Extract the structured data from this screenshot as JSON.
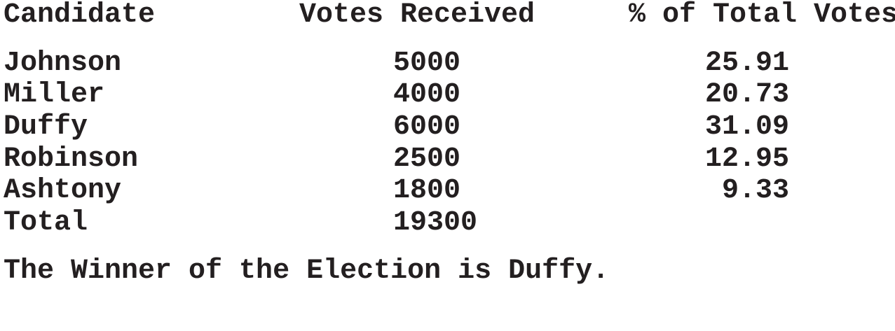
{
  "table": {
    "headers": {
      "candidate": "Candidate",
      "votes": "Votes Received",
      "percent": "% of Total Votes"
    },
    "rows": [
      {
        "candidate": "Johnson",
        "votes": "5000",
        "percent": "25.91"
      },
      {
        "candidate": "Miller",
        "votes": "4000",
        "percent": "20.73"
      },
      {
        "candidate": "Duffy",
        "votes": "6000",
        "percent": "31.09"
      },
      {
        "candidate": "Robinson",
        "votes": "2500",
        "percent": "12.95"
      },
      {
        "candidate": "Ashtony",
        "votes": "1800",
        "percent": "9.33"
      }
    ],
    "total": {
      "label": "Total",
      "votes": "19300"
    }
  },
  "winner_message": "The Winner of the Election is Duffy.",
  "colors": {
    "text": "#231f20",
    "background": "#ffffff"
  }
}
